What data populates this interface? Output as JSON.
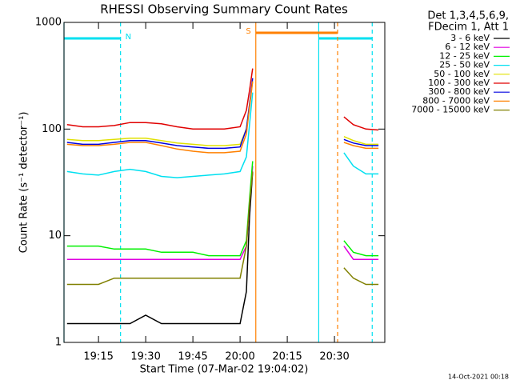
{
  "chart_data": {
    "type": "line",
    "title": "RHESSI Observing Summary Count Rates",
    "x_label": "Start Time (07-Mar-02 19:04:02)",
    "y_label": "Count Rate (s⁻¹ detector⁻¹)",
    "legend_header": [
      "Det 1,3,4,5,6,9,",
      "FDecim 1, Att 1"
    ],
    "footer": "14-Oct-2021 00:18",
    "log_y": true,
    "ylim": [
      1,
      1000
    ],
    "yticks": [
      1,
      10,
      100,
      1000
    ],
    "xlim": [
      "19:04:02",
      "20:46"
    ],
    "xticks": [
      "19:15",
      "19:30",
      "19:45",
      "20:00",
      "20:15",
      "20:30"
    ],
    "x": [
      "19:05",
      "19:10",
      "19:15",
      "19:20",
      "19:25",
      "19:30",
      "19:35",
      "19:40",
      "19:45",
      "19:50",
      "19:55",
      "20:00",
      "20:02",
      "20:03",
      "20:04",
      "20:20",
      "20:33",
      "20:36",
      "20:40",
      "20:44"
    ],
    "series": [
      {
        "name": "3 - 6 keV",
        "color": "#000000",
        "values": [
          1.5,
          1.5,
          1.5,
          1.5,
          1.5,
          1.8,
          1.5,
          1.5,
          1.5,
          1.5,
          1.5,
          1.5,
          3,
          15,
          40,
          null,
          null,
          null,
          null,
          null
        ]
      },
      {
        "name": "6 - 12 keV",
        "color": "#e000e0",
        "values": [
          6,
          6,
          6,
          6,
          6,
          6,
          6,
          6,
          6,
          6,
          6,
          6,
          8,
          20,
          45,
          null,
          8,
          6,
          6,
          6
        ]
      },
      {
        "name": "12 - 25 keV",
        "color": "#00f000",
        "values": [
          8,
          8,
          8,
          7.5,
          7.5,
          7.5,
          7,
          7,
          7,
          6.5,
          6.5,
          6.5,
          9,
          22,
          50,
          null,
          9,
          7,
          6.5,
          6.5
        ]
      },
      {
        "name": "25 - 50 keV",
        "color": "#00e0f0",
        "values": [
          40,
          38,
          37,
          40,
          42,
          40,
          36,
          35,
          36,
          37,
          38,
          40,
          55,
          110,
          220,
          null,
          60,
          45,
          38,
          38
        ]
      },
      {
        "name": "50 - 100 keV",
        "color": "#e0e000",
        "values": [
          80,
          78,
          78,
          80,
          82,
          82,
          78,
          74,
          72,
          70,
          70,
          72,
          100,
          170,
          280,
          null,
          85,
          78,
          72,
          72
        ]
      },
      {
        "name": "100 - 300 keV",
        "color": "#e00000",
        "values": [
          110,
          105,
          105,
          108,
          115,
          115,
          112,
          105,
          100,
          100,
          100,
          105,
          150,
          230,
          370,
          null,
          130,
          110,
          100,
          98
        ]
      },
      {
        "name": "300 - 800 keV",
        "color": "#0000e0",
        "values": [
          75,
          72,
          72,
          75,
          78,
          78,
          74,
          70,
          68,
          66,
          66,
          68,
          100,
          170,
          300,
          null,
          80,
          74,
          70,
          70
        ]
      },
      {
        "name": "800 - 7000 keV",
        "color": "#ff8000",
        "values": [
          72,
          70,
          70,
          72,
          75,
          75,
          70,
          65,
          62,
          60,
          60,
          62,
          90,
          160,
          280,
          null,
          75,
          70,
          66,
          66
        ]
      },
      {
        "name": "7000 - 15000 keV",
        "color": "#808000",
        "values": [
          3.5,
          3.5,
          3.5,
          4,
          4,
          4,
          4,
          4,
          4,
          4,
          4,
          4,
          8,
          20,
          40,
          null,
          5,
          4,
          3.5,
          3.5
        ]
      }
    ],
    "night": {
      "color": "#00e0f0",
      "intervals": [
        {
          "start": "19:04:02",
          "end": "19:22",
          "label": "N"
        },
        {
          "start": "20:25",
          "end": "20:42"
        }
      ]
    },
    "saa": {
      "color": "#ff8000",
      "intervals": [
        {
          "start": "20:05",
          "end": "20:31",
          "label": "S"
        }
      ]
    }
  }
}
